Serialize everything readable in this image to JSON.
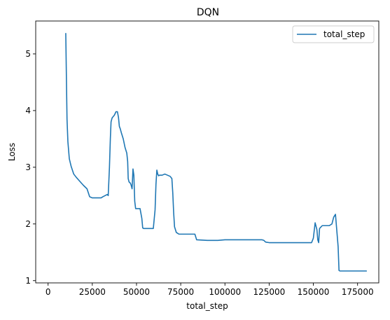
{
  "chart_data": {
    "type": "line",
    "title": "DQN",
    "xlabel": "total_step",
    "ylabel": "Loss",
    "xlim": [
      -7000,
      187000
    ],
    "ylim": [
      0.96,
      5.58
    ],
    "xticks": [
      0,
      25000,
      50000,
      75000,
      100000,
      125000,
      150000,
      175000
    ],
    "yticks": [
      1,
      2,
      3,
      4,
      5
    ],
    "grid": false,
    "legend_position": "top-right",
    "colors": {
      "series": "#1f77b4",
      "axes": "#000000",
      "background": "#ffffff"
    },
    "series": [
      {
        "name": "total_step",
        "x": [
          10000,
          10300,
          10700,
          11200,
          12000,
          13000,
          14500,
          16000,
          18000,
          20000,
          22000,
          23500,
          24200,
          25000,
          27000,
          30000,
          31000,
          33500,
          34000,
          34700,
          35200,
          35600,
          36200,
          37500,
          38400,
          39200,
          39800,
          40300,
          40800,
          41500,
          42500,
          43500,
          44500,
          45000,
          45300,
          45800,
          46500,
          47000,
          47500,
          48000,
          48500,
          49000,
          49500,
          50000,
          52000,
          53000,
          53500,
          54000,
          55000,
          58000,
          59500,
          60500,
          61000,
          61500,
          62000,
          62500,
          63000,
          64500,
          66000,
          67500,
          69000,
          70000,
          70500,
          71000,
          71500,
          72500,
          74000,
          76000,
          80000,
          83000,
          84000,
          90000,
          96000,
          100000,
          110000,
          115000,
          120000,
          121000,
          122000,
          123000,
          125000,
          130000,
          140000,
          149000,
          150000,
          151000,
          152000,
          152500,
          153000,
          153500,
          155000,
          157000,
          159000,
          160500,
          161500,
          162500,
          163000,
          164000,
          164500,
          165000,
          170000,
          180000
        ],
        "y": [
          5.36,
          4.7,
          3.85,
          3.45,
          3.15,
          3.02,
          2.88,
          2.82,
          2.75,
          2.68,
          2.62,
          2.48,
          2.47,
          2.46,
          2.46,
          2.46,
          2.48,
          2.52,
          2.5,
          3.0,
          3.5,
          3.8,
          3.87,
          3.92,
          3.98,
          3.98,
          3.88,
          3.72,
          3.68,
          3.6,
          3.5,
          3.35,
          3.25,
          3.1,
          2.8,
          2.74,
          2.72,
          2.68,
          2.62,
          2.97,
          2.86,
          2.4,
          2.27,
          2.27,
          2.27,
          2.1,
          1.93,
          1.92,
          1.92,
          1.92,
          1.92,
          2.25,
          2.7,
          2.95,
          2.88,
          2.85,
          2.86,
          2.86,
          2.88,
          2.86,
          2.84,
          2.8,
          2.55,
          2.2,
          1.95,
          1.85,
          1.82,
          1.82,
          1.82,
          1.82,
          1.72,
          1.71,
          1.71,
          1.72,
          1.72,
          1.72,
          1.72,
          1.72,
          1.71,
          1.68,
          1.67,
          1.67,
          1.67,
          1.67,
          1.75,
          2.02,
          1.9,
          1.72,
          1.67,
          1.92,
          1.97,
          1.97,
          1.97,
          2.0,
          2.12,
          2.17,
          1.98,
          1.6,
          1.18,
          1.17,
          1.17,
          1.17
        ]
      }
    ]
  }
}
